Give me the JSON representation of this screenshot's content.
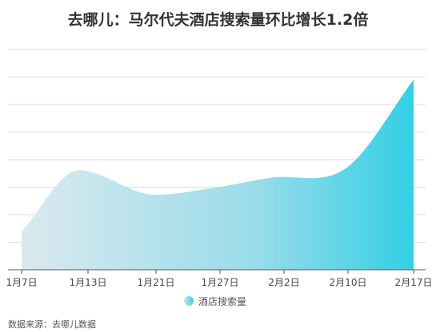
{
  "chart_data": {
    "type": "area",
    "title": "去哪儿：马尔代夫酒店搜索量环比增长1.2倍",
    "categories": [
      "1月7日",
      "1月13日",
      "1月21日",
      "1月27日",
      "2月2日",
      "2月10日",
      "2月17日"
    ],
    "x": [
      0,
      6,
      14,
      20,
      26,
      34,
      41
    ],
    "values_approx": [
      14.8,
      38.5,
      29,
      31.6,
      35.6,
      39.5,
      73.5
    ],
    "series": [
      {
        "name": "酒店搜索量"
      }
    ],
    "grid": true,
    "legend_position": "bottom-center",
    "colors": {
      "start": "#d9eaf0",
      "end": "#33d0e6",
      "grid": "#dddddd",
      "axis": "#555555"
    }
  },
  "source": "数据来源：去哪儿数据"
}
